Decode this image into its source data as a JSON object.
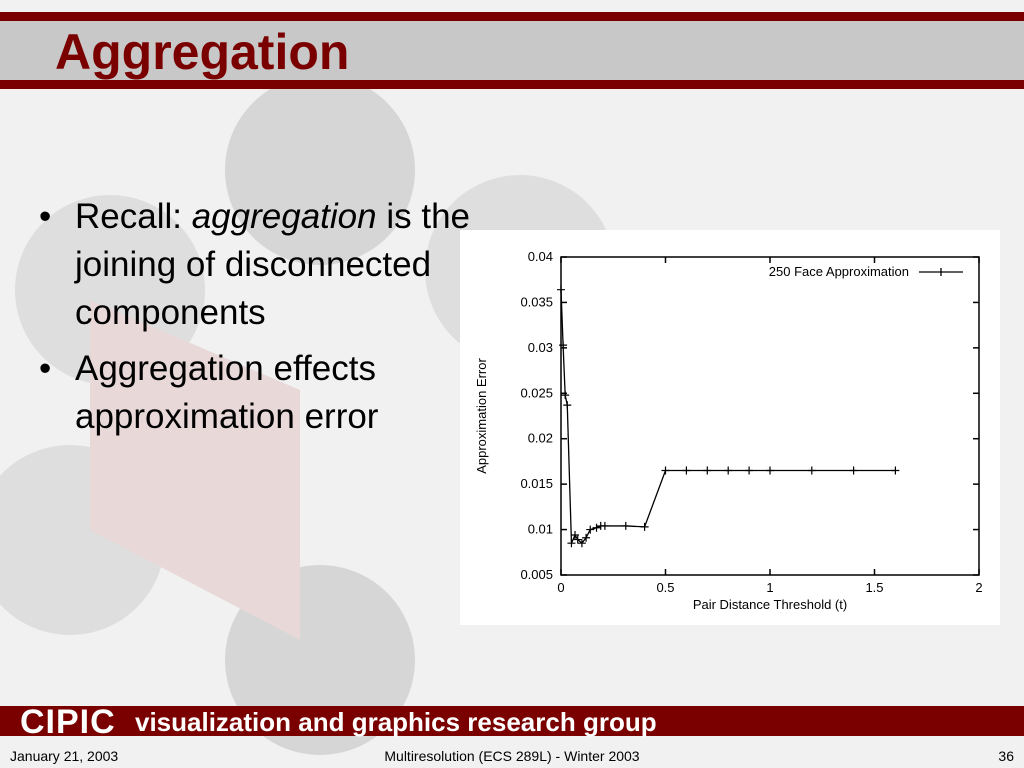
{
  "slide": {
    "title": "Aggregation",
    "bullets": [
      {
        "parts": [
          "Recall:",
          "aggregation",
          "is the joining of disconnected components"
        ]
      },
      {
        "parts": [
          "Aggregation effects approximation error"
        ]
      }
    ],
    "banner": {
      "logo": "CIPIC",
      "text": "visualization and graphics research group"
    },
    "footer": {
      "date": "January 21, 2003",
      "course": "Multiresolution (ECS 289L) - Winter 2003",
      "page": "36"
    }
  },
  "chart_data": {
    "type": "line",
    "x_label": "Pair Distance Threshold (t)",
    "y_label": "Approximation Error",
    "x": [
      0,
      0.01,
      0.02,
      0.03,
      0.05,
      0.067,
      0.08,
      0.1,
      0.12,
      0.14,
      0.17,
      0.19,
      0.21,
      0.31,
      0.4,
      0.5,
      0.6,
      0.7,
      0.8,
      0.9,
      1.0,
      1.2,
      1.4,
      1.6
    ],
    "series": [
      {
        "name": "250 Face Approximation",
        "color": "#000000",
        "values": [
          0.0364,
          0.0303,
          0.0248,
          0.0237,
          0.0085,
          0.0094,
          0.0089,
          0.0085,
          0.0091,
          0.01,
          0.0102,
          0.0104,
          0.0104,
          0.0104,
          0.0103,
          0.0165,
          0.0165,
          0.0165,
          0.0165,
          0.0165,
          0.0165,
          0.0165,
          0.0165,
          0.0165
        ]
      }
    ],
    "xlim": [
      0,
      2
    ],
    "xticks": [
      0,
      0.5,
      1,
      1.5,
      2
    ],
    "ylim": [
      0.005,
      0.04
    ],
    "yticks": [
      0.005,
      0.01,
      0.015,
      0.02,
      0.025,
      0.03,
      0.035,
      0.04
    ],
    "legend": "upper right",
    "grid": false
  }
}
